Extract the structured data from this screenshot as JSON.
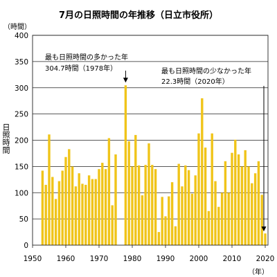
{
  "chart_data": {
    "type": "bar",
    "title": "7月の日照時間の年推移（日立市役所）",
    "ylabel": "日照時間",
    "yunit": "（時間）",
    "xunit": "（年）",
    "xlim": [
      1950,
      2020
    ],
    "ylim": [
      0,
      400
    ],
    "xticks": [
      1950,
      1960,
      1970,
      1980,
      1990,
      2000,
      2010,
      2020
    ],
    "yticks": [
      0,
      50,
      100,
      150,
      200,
      250,
      300,
      350,
      400
    ],
    "grid": true,
    "bar_color": "#F0C419",
    "x": [
      1953,
      1954,
      1955,
      1956,
      1957,
      1958,
      1959,
      1960,
      1961,
      1962,
      1963,
      1964,
      1965,
      1966,
      1967,
      1968,
      1969,
      1970,
      1971,
      1972,
      1973,
      1974,
      1975,
      1976,
      1977,
      1978,
      1979,
      1980,
      1981,
      1982,
      1983,
      1984,
      1985,
      1986,
      1987,
      1988,
      1989,
      1990,
      1991,
      1992,
      1993,
      1994,
      1995,
      1996,
      1997,
      1998,
      1999,
      2000,
      2001,
      2002,
      2003,
      2004,
      2005,
      2006,
      2007,
      2008,
      2009,
      2010,
      2011,
      2012,
      2013,
      2014,
      2015,
      2016,
      2017,
      2018,
      2019,
      2020
    ],
    "values": [
      142,
      115,
      211,
      130,
      88,
      122,
      142,
      168,
      183,
      150,
      112,
      137,
      117,
      115,
      133,
      126,
      126,
      145,
      157,
      145,
      204,
      76,
      173,
      null,
      null,
      304.7,
      198,
      150,
      210,
      152,
      95,
      153,
      194,
      153,
      145,
      25,
      92,
      55,
      93,
      120,
      36,
      155,
      112,
      152,
      143,
      98,
      133,
      213,
      280,
      186,
      65,
      213,
      122,
      73,
      100,
      160,
      100,
      176,
      201,
      173,
      150,
      181,
      150,
      118,
      137,
      160,
      96,
      22.3
    ],
    "annotations": [
      {
        "lines": [
          "最も日照時間の多かった年",
          "304.7時間（1978年）"
        ],
        "year": 1978,
        "value": 304.7
      },
      {
        "lines": [
          "最も日照時間の少なかった年",
          "22.3時間（2020年）"
        ],
        "year": 2020,
        "value": 22.3
      }
    ]
  }
}
